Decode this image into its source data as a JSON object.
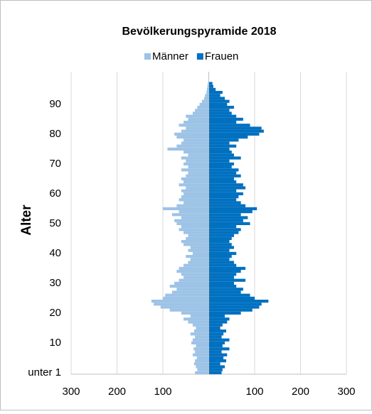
{
  "chart_data": {
    "type": "pyramid",
    "title": "Bevölkerungspyramide 2018",
    "y_label": "Alter",
    "categories": [
      "unter 1",
      null,
      null,
      null,
      null,
      null,
      null,
      null,
      null,
      null,
      "10",
      null,
      null,
      null,
      null,
      null,
      null,
      null,
      null,
      null,
      "20",
      null,
      null,
      null,
      null,
      null,
      null,
      null,
      null,
      null,
      "30",
      null,
      null,
      null,
      null,
      null,
      null,
      null,
      null,
      null,
      "40",
      null,
      null,
      null,
      null,
      null,
      null,
      null,
      null,
      null,
      "50",
      null,
      null,
      null,
      null,
      null,
      null,
      null,
      null,
      null,
      "60",
      null,
      null,
      null,
      null,
      null,
      null,
      null,
      null,
      null,
      "70",
      null,
      null,
      null,
      null,
      null,
      null,
      null,
      null,
      null,
      "80",
      null,
      null,
      null,
      null,
      null,
      null,
      null,
      null,
      null,
      "90",
      null,
      null,
      null,
      null,
      null,
      null,
      null
    ],
    "series": [
      {
        "name": "Männer",
        "color": "#9dc3e6",
        "values": [
          -30,
          -25,
          -28,
          -32,
          -30,
          -26,
          -35,
          -30,
          -33,
          -28,
          -38,
          -35,
          -30,
          -40,
          -32,
          -28,
          -35,
          -45,
          -55,
          -40,
          -60,
          -85,
          -105,
          -120,
          -125,
          -100,
          -95,
          -80,
          -70,
          -85,
          -75,
          -65,
          -55,
          -60,
          -70,
          -65,
          -55,
          -45,
          -40,
          -50,
          -35,
          -45,
          -40,
          -55,
          -60,
          -50,
          -45,
          -55,
          -65,
          -60,
          -70,
          -75,
          -60,
          -80,
          -65,
          -100,
          -70,
          -55,
          -65,
          -60,
          -55,
          -60,
          -50,
          -65,
          -55,
          -60,
          -50,
          -45,
          -60,
          -45,
          -55,
          -50,
          -60,
          -45,
          -55,
          -90,
          -70,
          -60,
          -55,
          -70,
          -75,
          -60,
          -50,
          -65,
          -55,
          -45,
          -50,
          -35,
          -30,
          -25,
          -20,
          -15,
          -10,
          -8,
          -5,
          -4,
          -3,
          -2
        ]
      },
      {
        "name": "Frauen",
        "color": "#0070c0",
        "values": [
          28,
          30,
          35,
          25,
          38,
          32,
          40,
          28,
          45,
          30,
          35,
          45,
          28,
          32,
          38,
          25,
          30,
          40,
          45,
          35,
          70,
          95,
          110,
          115,
          130,
          100,
          90,
          70,
          75,
          60,
          55,
          80,
          55,
          60,
          70,
          80,
          60,
          55,
          45,
          50,
          60,
          45,
          55,
          50,
          45,
          50,
          55,
          65,
          70,
          60,
          90,
          75,
          85,
          70,
          95,
          105,
          80,
          70,
          60,
          65,
          75,
          60,
          80,
          75,
          60,
          55,
          70,
          60,
          65,
          50,
          55,
          45,
          70,
          55,
          50,
          45,
          60,
          45,
          65,
          85,
          110,
          120,
          115,
          90,
          60,
          75,
          60,
          50,
          45,
          55,
          40,
          45,
          35,
          25,
          30,
          15,
          10,
          8
        ]
      }
    ],
    "xlim": [
      -300,
      300
    ],
    "xticks": [
      {
        "value": -300,
        "label": "300"
      },
      {
        "value": -200,
        "label": "200"
      },
      {
        "value": -100,
        "label": "100"
      },
      {
        "value": 0,
        "label": ""
      },
      100,
      200,
      300
    ],
    "grid": true,
    "legend": "top"
  }
}
